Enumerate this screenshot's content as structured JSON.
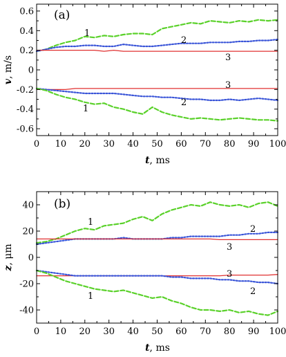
{
  "chart_data": [
    {
      "type": "line",
      "panel_tag": "(a)",
      "xlabel_var": "t",
      "xlabel_unit": ", ms",
      "ylabel_var": "v",
      "ylabel_unit": ", m/s",
      "xlim": [
        0,
        100
      ],
      "ylim": [
        -0.67,
        0.67
      ],
      "x_ticks": [
        "0",
        "10",
        "20",
        "30",
        "40",
        "50",
        "60",
        "70",
        "80",
        "90",
        "100"
      ],
      "y_ticks": [
        "0.6",
        "0.4",
        "0.2",
        "0",
        "-0.2",
        "-0.4",
        "-0.6"
      ],
      "grid": false,
      "x": [
        0,
        4,
        8,
        12,
        16,
        20,
        24,
        28,
        32,
        36,
        40,
        44,
        48,
        52,
        56,
        60,
        64,
        68,
        72,
        76,
        80,
        84,
        88,
        92,
        96,
        100
      ],
      "series": [
        {
          "label": "1",
          "color": "#5ad12a",
          "dash": "dashed",
          "values": [
            0.19,
            0.21,
            0.25,
            0.28,
            0.3,
            0.34,
            0.33,
            0.35,
            0.34,
            0.36,
            0.37,
            0.37,
            0.36,
            0.42,
            0.44,
            0.46,
            0.48,
            0.47,
            0.5,
            0.49,
            0.48,
            0.5,
            0.49,
            0.51,
            0.5,
            0.51
          ]
        },
        {
          "label": "2",
          "color": "#3a55d8",
          "dash": "dotted",
          "values": [
            0.19,
            0.21,
            0.23,
            0.24,
            0.24,
            0.25,
            0.25,
            0.24,
            0.24,
            0.26,
            0.25,
            0.24,
            0.24,
            0.25,
            0.26,
            0.27,
            0.27,
            0.27,
            0.28,
            0.28,
            0.28,
            0.29,
            0.29,
            0.3,
            0.3,
            0.31
          ]
        },
        {
          "label": "3",
          "color": "#e03030",
          "dash": "solid",
          "values": [
            0.2,
            0.2,
            0.2,
            0.2,
            0.2,
            0.2,
            0.2,
            0.19,
            0.2,
            0.19,
            0.19,
            0.19,
            0.19,
            0.19,
            0.19,
            0.19,
            0.19,
            0.19,
            0.19,
            0.19,
            0.19,
            0.19,
            0.19,
            0.19,
            0.19,
            0.19
          ]
        },
        {
          "label": "3",
          "color": "#e03030",
          "dash": "solid",
          "values": [
            -0.2,
            -0.2,
            -0.2,
            -0.2,
            -0.19,
            -0.19,
            -0.19,
            -0.19,
            -0.19,
            -0.19,
            -0.19,
            -0.19,
            -0.19,
            -0.19,
            -0.19,
            -0.19,
            -0.19,
            -0.19,
            -0.19,
            -0.19,
            -0.19,
            -0.19,
            -0.19,
            -0.19,
            -0.19,
            -0.19
          ]
        },
        {
          "label": "2",
          "color": "#3a55d8",
          "dash": "dotted",
          "values": [
            -0.19,
            -0.2,
            -0.21,
            -0.22,
            -0.23,
            -0.24,
            -0.24,
            -0.24,
            -0.24,
            -0.25,
            -0.26,
            -0.27,
            -0.27,
            -0.28,
            -0.28,
            -0.29,
            -0.3,
            -0.3,
            -0.31,
            -0.31,
            -0.3,
            -0.31,
            -0.3,
            -0.29,
            -0.3,
            -0.31
          ]
        },
        {
          "label": "1",
          "color": "#5ad12a",
          "dash": "dashed",
          "values": [
            -0.19,
            -0.21,
            -0.25,
            -0.28,
            -0.3,
            -0.33,
            -0.35,
            -0.34,
            -0.38,
            -0.4,
            -0.43,
            -0.45,
            -0.38,
            -0.43,
            -0.46,
            -0.48,
            -0.5,
            -0.49,
            -0.5,
            -0.51,
            -0.5,
            -0.49,
            -0.5,
            -0.51,
            -0.51,
            -0.52
          ]
        }
      ]
    },
    {
      "type": "line",
      "panel_tag": "(b)",
      "xlabel_var": "t",
      "xlabel_unit": ", ms",
      "ylabel_var": "z",
      "ylabel_unit": ", μm",
      "xlim": [
        0,
        100
      ],
      "ylim": [
        -50,
        50
      ],
      "x_ticks": [
        "0",
        "10",
        "20",
        "30",
        "40",
        "50",
        "60",
        "70",
        "80",
        "90",
        "100"
      ],
      "y_ticks": [
        "40",
        "20",
        "0",
        "-20",
        "-40"
      ],
      "grid": false,
      "x": [
        0,
        4,
        8,
        12,
        16,
        20,
        24,
        28,
        32,
        36,
        40,
        44,
        48,
        52,
        56,
        60,
        64,
        68,
        72,
        76,
        80,
        84,
        88,
        92,
        96,
        100
      ],
      "series": [
        {
          "label": "1",
          "color": "#5ad12a",
          "dash": "dashed",
          "values": [
            11,
            12,
            14,
            17,
            20,
            22,
            21,
            24,
            25,
            26,
            29,
            31,
            28,
            33,
            36,
            38,
            40,
            39,
            42,
            40,
            39,
            40,
            38,
            41,
            42,
            39
          ]
        },
        {
          "label": "2",
          "color": "#3a55d8",
          "dash": "dotted",
          "values": [
            10,
            11,
            12,
            13,
            14,
            14,
            14,
            14,
            14,
            15,
            14,
            14,
            14,
            14,
            15,
            15,
            16,
            16,
            16,
            16,
            17,
            17,
            18,
            18,
            19,
            19
          ]
        },
        {
          "label": "3",
          "color": "#e03030",
          "dash": "solid",
          "values": [
            14,
            14,
            14,
            14,
            14,
            14,
            14,
            14,
            14,
            14,
            14,
            14,
            14,
            14,
            14,
            14,
            14,
            14,
            14,
            13.5,
            13.5,
            13.5,
            13.5,
            13.5,
            13.5,
            13.5
          ]
        },
        {
          "label": "3",
          "color": "#e03030",
          "dash": "solid",
          "values": [
            -14,
            -14,
            -14,
            -14,
            -14,
            -14,
            -14,
            -14,
            -14,
            -14,
            -14,
            -14,
            -14,
            -14,
            -14,
            -14,
            -14,
            -14,
            -14,
            -14,
            -13.5,
            -13.5,
            -13.5,
            -13.5,
            -13.5,
            -13
          ]
        },
        {
          "label": "2",
          "color": "#3a55d8",
          "dash": "dotted",
          "values": [
            -10,
            -11,
            -12,
            -13,
            -14,
            -14,
            -14,
            -14,
            -14,
            -14,
            -14,
            -14,
            -14,
            -14,
            -15,
            -15,
            -16,
            -16,
            -16,
            -17,
            -17,
            -18,
            -18,
            -19,
            -19,
            -20
          ]
        },
        {
          "label": "1",
          "color": "#5ad12a",
          "dash": "dashed",
          "values": [
            -10,
            -12,
            -15,
            -18,
            -20,
            -22,
            -24,
            -25,
            -26,
            -25,
            -27,
            -29,
            -31,
            -30,
            -33,
            -35,
            -38,
            -40,
            -40,
            -41,
            -40,
            -42,
            -41,
            -43,
            -44,
            -41
          ]
        }
      ]
    }
  ]
}
